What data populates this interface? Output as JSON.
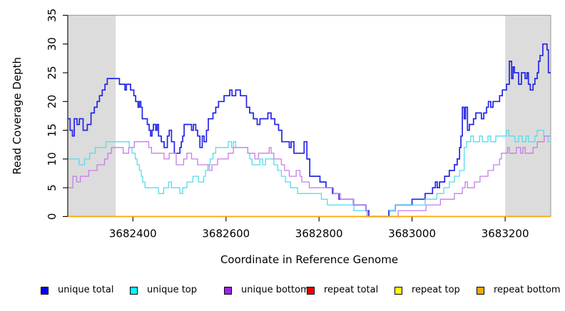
{
  "chart_data": {
    "type": "line",
    "subtype": "step",
    "title": "",
    "xlabel": "Coordinate in Reference Genome",
    "ylabel": "Read Coverage Depth",
    "xlim": [
      3682260,
      3683298
    ],
    "ylim": [
      0,
      35
    ],
    "x_ticks": [
      3682400,
      3682600,
      3682800,
      3683000,
      3683200
    ],
    "y_ticks": [
      0,
      5,
      10,
      15,
      20,
      25,
      30,
      35
    ],
    "grid": false,
    "legend_position": "bottom",
    "shaded_regions": [
      {
        "x0": 3682260,
        "x1": 3682363,
        "color": "#DCDCDC"
      },
      {
        "x0": 3683200,
        "x1": 3683298,
        "color": "#DCDCDC"
      }
    ],
    "series": [
      {
        "name": "unique total",
        "swatch_color": "#0000EE",
        "line_color": "#2424E8",
        "line_width": 1.7,
        "points": [
          [
            3682261,
            17
          ],
          [
            3682265,
            15
          ],
          [
            3682270,
            14
          ],
          [
            3682274,
            17
          ],
          [
            3682280,
            16
          ],
          [
            3682285,
            17
          ],
          [
            3682293,
            15
          ],
          [
            3682302,
            16
          ],
          [
            3682310,
            18
          ],
          [
            3682317,
            19
          ],
          [
            3682323,
            20
          ],
          [
            3682328,
            21
          ],
          [
            3682334,
            22
          ],
          [
            3682340,
            23
          ],
          [
            3682345,
            24
          ],
          [
            3682371,
            23
          ],
          [
            3682383,
            22
          ],
          [
            3682386,
            23
          ],
          [
            3682395,
            22
          ],
          [
            3682402,
            21
          ],
          [
            3682406,
            20
          ],
          [
            3682411,
            19
          ],
          [
            3682414,
            20
          ],
          [
            3682417,
            19
          ],
          [
            3682420,
            17
          ],
          [
            3682431,
            16
          ],
          [
            3682435,
            15
          ],
          [
            3682438,
            14
          ],
          [
            3682441,
            15
          ],
          [
            3682444,
            16
          ],
          [
            3682449,
            15
          ],
          [
            3682452,
            16
          ],
          [
            3682455,
            14
          ],
          [
            3682461,
            13
          ],
          [
            3682467,
            12
          ],
          [
            3682474,
            14
          ],
          [
            3682478,
            15
          ],
          [
            3682483,
            13
          ],
          [
            3682489,
            11
          ],
          [
            3682501,
            12
          ],
          [
            3682504,
            13
          ],
          [
            3682507,
            14
          ],
          [
            3682510,
            16
          ],
          [
            3682526,
            15
          ],
          [
            3682530,
            16
          ],
          [
            3682535,
            15
          ],
          [
            3682539,
            14
          ],
          [
            3682544,
            12
          ],
          [
            3682549,
            14
          ],
          [
            3682553,
            13
          ],
          [
            3682558,
            15
          ],
          [
            3682562,
            17
          ],
          [
            3682572,
            18
          ],
          [
            3682578,
            19
          ],
          [
            3682584,
            20
          ],
          [
            3682596,
            21
          ],
          [
            3682608,
            22
          ],
          [
            3682613,
            21
          ],
          [
            3682621,
            22
          ],
          [
            3682631,
            21
          ],
          [
            3682644,
            19
          ],
          [
            3682651,
            18
          ],
          [
            3682659,
            17
          ],
          [
            3682667,
            16
          ],
          [
            3682673,
            17
          ],
          [
            3682690,
            18
          ],
          [
            3682697,
            17
          ],
          [
            3682705,
            16
          ],
          [
            3682713,
            15
          ],
          [
            3682720,
            13
          ],
          [
            3682736,
            12
          ],
          [
            3682740,
            13
          ],
          [
            3682746,
            11
          ],
          [
            3682768,
            13
          ],
          [
            3682774,
            10
          ],
          [
            3682780,
            7
          ],
          [
            3682802,
            6
          ],
          [
            3682815,
            5
          ],
          [
            3682829,
            4
          ],
          [
            3682843,
            3
          ],
          [
            3682874,
            2
          ],
          [
            3682901,
            1
          ],
          [
            3682907,
            0
          ],
          [
            3682950,
            1
          ],
          [
            3682964,
            2
          ],
          [
            3683000,
            3
          ],
          [
            3683028,
            4
          ],
          [
            3683044,
            5
          ],
          [
            3683050,
            6
          ],
          [
            3683054,
            5
          ],
          [
            3683059,
            6
          ],
          [
            3683070,
            7
          ],
          [
            3683080,
            8
          ],
          [
            3683091,
            9
          ],
          [
            3683097,
            10
          ],
          [
            3683102,
            12
          ],
          [
            3683105,
            14
          ],
          [
            3683108,
            19
          ],
          [
            3683112,
            17
          ],
          [
            3683115,
            19
          ],
          [
            3683119,
            15
          ],
          [
            3683123,
            16
          ],
          [
            3683132,
            17
          ],
          [
            3683137,
            18
          ],
          [
            3683149,
            17
          ],
          [
            3683154,
            18
          ],
          [
            3683160,
            19
          ],
          [
            3683164,
            20
          ],
          [
            3683169,
            19
          ],
          [
            3683174,
            20
          ],
          [
            3683188,
            21
          ],
          [
            3683194,
            22
          ],
          [
            3683203,
            23
          ],
          [
            3683209,
            27
          ],
          [
            3683214,
            24
          ],
          [
            3683217,
            26
          ],
          [
            3683220,
            25
          ],
          [
            3683229,
            23
          ],
          [
            3683235,
            25
          ],
          [
            3683243,
            24
          ],
          [
            3683247,
            25
          ],
          [
            3683250,
            23
          ],
          [
            3683254,
            22
          ],
          [
            3683260,
            23
          ],
          [
            3683264,
            24
          ],
          [
            3683269,
            25
          ],
          [
            3683272,
            27
          ],
          [
            3683275,
            28
          ],
          [
            3683281,
            30
          ],
          [
            3683290,
            29
          ],
          [
            3683293,
            25
          ]
        ]
      },
      {
        "name": "unique top",
        "swatch_color": "#00FFFF",
        "line_color": "#55DCEC",
        "line_width": 1.3,
        "points": [
          [
            3682261,
            10
          ],
          [
            3682284,
            9
          ],
          [
            3682296,
            10
          ],
          [
            3682307,
            11
          ],
          [
            3682319,
            12
          ],
          [
            3682342,
            13
          ],
          [
            3682392,
            12
          ],
          [
            3682398,
            11
          ],
          [
            3682405,
            10
          ],
          [
            3682409,
            9
          ],
          [
            3682414,
            8
          ],
          [
            3682418,
            7
          ],
          [
            3682421,
            6
          ],
          [
            3682426,
            5
          ],
          [
            3682455,
            4
          ],
          [
            3682466,
            5
          ],
          [
            3682477,
            6
          ],
          [
            3682483,
            5
          ],
          [
            3682501,
            4
          ],
          [
            3682507,
            5
          ],
          [
            3682516,
            6
          ],
          [
            3682529,
            7
          ],
          [
            3682541,
            6
          ],
          [
            3682552,
            7
          ],
          [
            3682556,
            8
          ],
          [
            3682561,
            9
          ],
          [
            3682566,
            10
          ],
          [
            3682572,
            11
          ],
          [
            3682578,
            12
          ],
          [
            3682605,
            13
          ],
          [
            3682612,
            12
          ],
          [
            3682616,
            13
          ],
          [
            3682621,
            12
          ],
          [
            3682647,
            11
          ],
          [
            3682651,
            10
          ],
          [
            3682656,
            9
          ],
          [
            3682673,
            10
          ],
          [
            3682679,
            9
          ],
          [
            3682685,
            10
          ],
          [
            3682703,
            9
          ],
          [
            3682711,
            8
          ],
          [
            3682719,
            7
          ],
          [
            3682728,
            6
          ],
          [
            3682739,
            5
          ],
          [
            3682754,
            4
          ],
          [
            3682805,
            3
          ],
          [
            3682818,
            2
          ],
          [
            3682875,
            1
          ],
          [
            3682903,
            0
          ],
          [
            3682952,
            1
          ],
          [
            3682964,
            2
          ],
          [
            3683028,
            3
          ],
          [
            3683053,
            4
          ],
          [
            3683068,
            5
          ],
          [
            3683080,
            6
          ],
          [
            3683091,
            7
          ],
          [
            3683102,
            8
          ],
          [
            3683112,
            12
          ],
          [
            3683117,
            13
          ],
          [
            3683126,
            14
          ],
          [
            3683132,
            13
          ],
          [
            3683145,
            14
          ],
          [
            3683151,
            13
          ],
          [
            3683163,
            14
          ],
          [
            3683169,
            13
          ],
          [
            3683180,
            14
          ],
          [
            3683203,
            15
          ],
          [
            3683208,
            14
          ],
          [
            3683221,
            13
          ],
          [
            3683229,
            14
          ],
          [
            3683237,
            13
          ],
          [
            3683245,
            14
          ],
          [
            3683250,
            13
          ],
          [
            3683264,
            14
          ],
          [
            3683269,
            15
          ],
          [
            3683283,
            14
          ],
          [
            3683292,
            13
          ]
        ]
      },
      {
        "name": "unique bottom",
        "swatch_color": "#A020F0",
        "line_color": "#C77DE8",
        "line_width": 1.3,
        "points": [
          [
            3682261,
            5
          ],
          [
            3682271,
            7
          ],
          [
            3682279,
            6
          ],
          [
            3682287,
            7
          ],
          [
            3682305,
            8
          ],
          [
            3682323,
            9
          ],
          [
            3682339,
            10
          ],
          [
            3682346,
            11
          ],
          [
            3682354,
            12
          ],
          [
            3682379,
            11
          ],
          [
            3682391,
            12
          ],
          [
            3682403,
            13
          ],
          [
            3682434,
            12
          ],
          [
            3682440,
            11
          ],
          [
            3682467,
            10
          ],
          [
            3682478,
            11
          ],
          [
            3682493,
            9
          ],
          [
            3682509,
            10
          ],
          [
            3682516,
            11
          ],
          [
            3682526,
            10
          ],
          [
            3682539,
            9
          ],
          [
            3682564,
            8
          ],
          [
            3682570,
            9
          ],
          [
            3682582,
            10
          ],
          [
            3682605,
            11
          ],
          [
            3682616,
            12
          ],
          [
            3682647,
            11
          ],
          [
            3682662,
            10
          ],
          [
            3682670,
            11
          ],
          [
            3682693,
            12
          ],
          [
            3682697,
            11
          ],
          [
            3682703,
            10
          ],
          [
            3682719,
            9
          ],
          [
            3682726,
            8
          ],
          [
            3682736,
            7
          ],
          [
            3682751,
            8
          ],
          [
            3682759,
            7
          ],
          [
            3682763,
            6
          ],
          [
            3682779,
            5
          ],
          [
            3682831,
            4
          ],
          [
            3682846,
            3
          ],
          [
            3682874,
            2
          ],
          [
            3682901,
            1
          ],
          [
            3682904,
            0
          ],
          [
            3682970,
            1
          ],
          [
            3683030,
            2
          ],
          [
            3683061,
            3
          ],
          [
            3683091,
            4
          ],
          [
            3683108,
            5
          ],
          [
            3683114,
            6
          ],
          [
            3683119,
            5
          ],
          [
            3683134,
            6
          ],
          [
            3683146,
            7
          ],
          [
            3683163,
            8
          ],
          [
            3683175,
            9
          ],
          [
            3683188,
            10
          ],
          [
            3683192,
            11
          ],
          [
            3683205,
            12
          ],
          [
            3683209,
            11
          ],
          [
            3683224,
            12
          ],
          [
            3683233,
            11
          ],
          [
            3683238,
            12
          ],
          [
            3683243,
            11
          ],
          [
            3683260,
            12
          ],
          [
            3683269,
            13
          ],
          [
            3683284,
            14
          ]
        ]
      },
      {
        "name": "repeat total",
        "swatch_color": "#EE0000",
        "line_color": "#DD0000",
        "line_width": 1.3,
        "points": [
          [
            3682260,
            0
          ],
          [
            3683298,
            0
          ]
        ]
      },
      {
        "name": "repeat top",
        "swatch_color": "#FFFF00",
        "line_color": "#F0F000",
        "line_width": 1.3,
        "points": [
          [
            3682260,
            0
          ],
          [
            3683298,
            0
          ]
        ]
      },
      {
        "name": "repeat bottom",
        "swatch_color": "#FFA500",
        "line_color": "#FFA500",
        "line_width": 1.6,
        "points": [
          [
            3682260,
            0
          ],
          [
            3683298,
            0
          ]
        ]
      }
    ]
  },
  "legend_x_positions": [
    57,
    182,
    314,
    430,
    553,
    668
  ]
}
